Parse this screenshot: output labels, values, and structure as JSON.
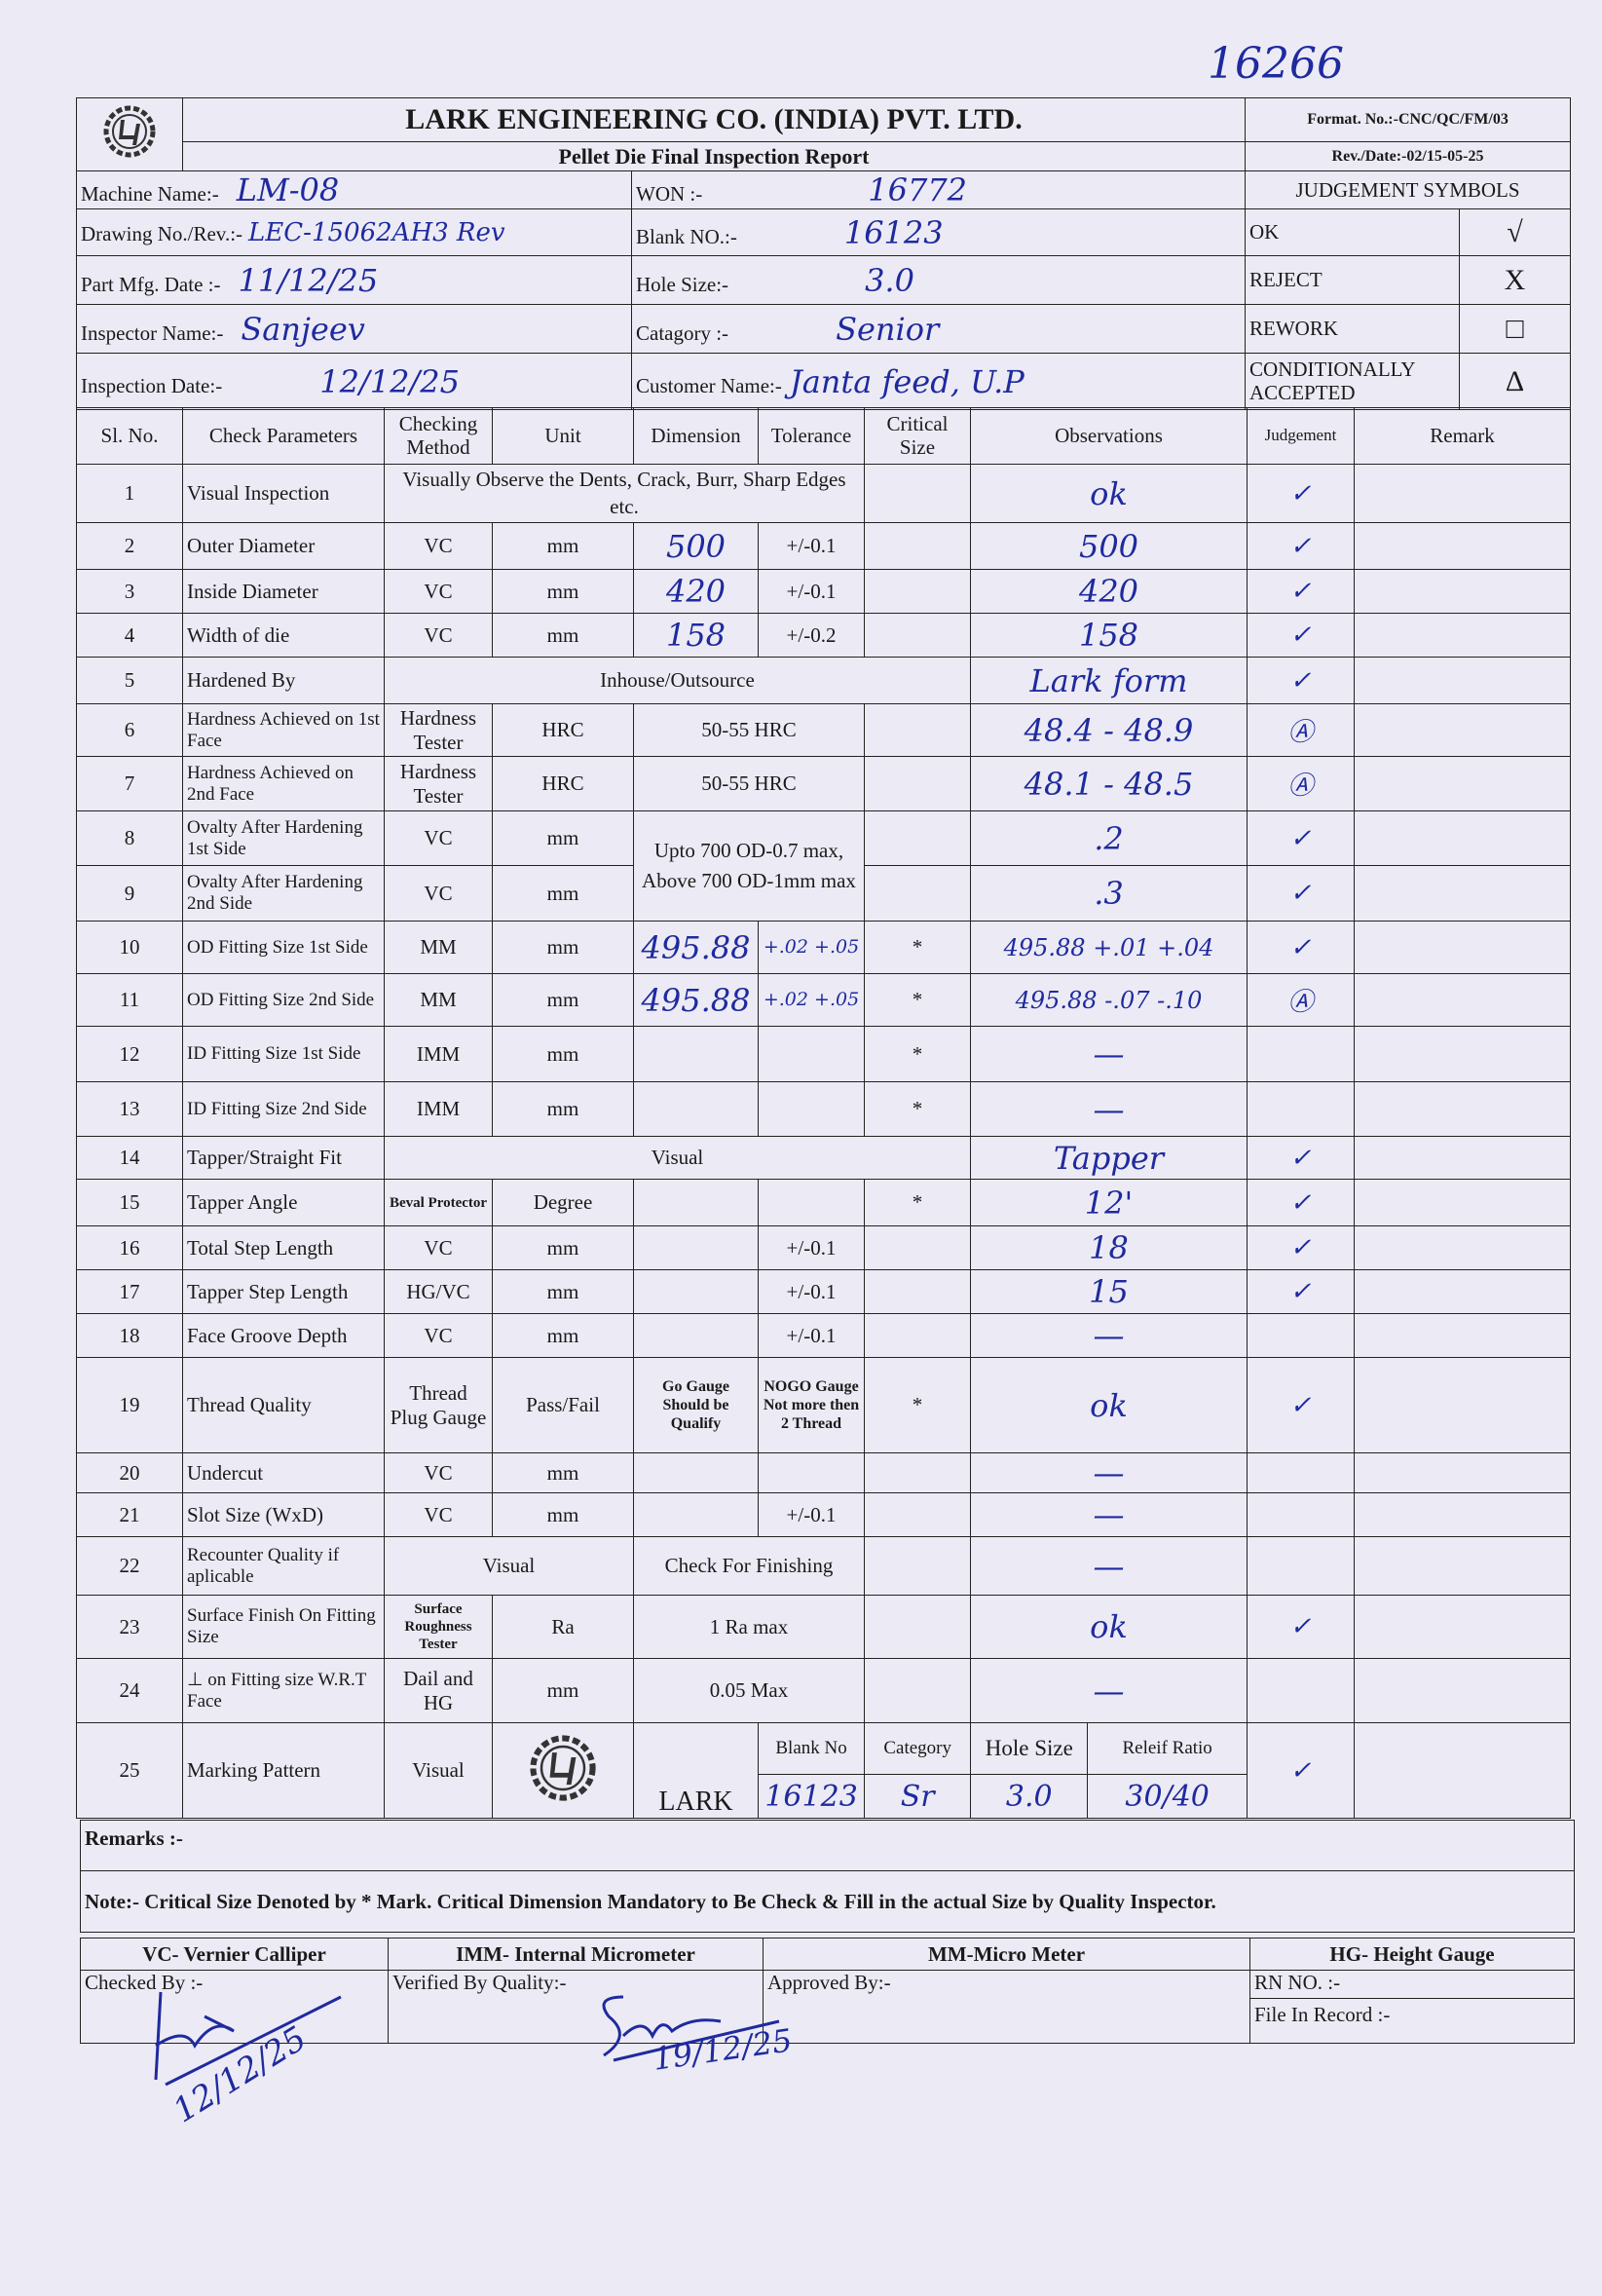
{
  "page_number_handwritten": "16266",
  "header": {
    "company": "LARK ENGINEERING CO. (INDIA) PVT. LTD.",
    "report_title": "Pellet Die Final Inspection Report",
    "format_no": "Format. No.:-CNC/QC/FM/03",
    "rev_date": "Rev./Date:-02/15-05-25",
    "logo_icon": "lark-gear-logo"
  },
  "info": {
    "machine_name": {
      "label": "Machine Name:-",
      "value": "LM-08"
    },
    "drawing_no": {
      "label": "Drawing No./Rev.:-",
      "value": "LEC-15062AH3 Rev"
    },
    "part_mfg_date": {
      "label": "Part Mfg. Date :-",
      "value": "11/12/25"
    },
    "inspector_name": {
      "label": "Inspector Name:-",
      "value": "Sanjeev"
    },
    "inspection_date": {
      "label": "Inspection Date:-",
      "value": "12/12/25"
    },
    "won": {
      "label": "WON :-",
      "value": "16772"
    },
    "blank_no": {
      "label": "Blank NO.:-",
      "value": "16123"
    },
    "hole_size": {
      "label": "Hole Size:-",
      "value": "3.0"
    },
    "category": {
      "label": "Catagory :-",
      "value": "Senior"
    },
    "customer_name": {
      "label": "Customer Name:-",
      "value": "Janta feed, U.P"
    }
  },
  "judgement_symbols": {
    "title": "JUDGEMENT SYMBOLS",
    "items": [
      {
        "label": "OK",
        "symbol": "√"
      },
      {
        "label": "REJECT",
        "symbol": "X"
      },
      {
        "label": "REWORK",
        "symbol": "□"
      },
      {
        "label": "CONDITIONALLY ACCEPTED",
        "symbol": "Δ"
      }
    ]
  },
  "columns": [
    "Sl. No.",
    "Check Parameters",
    "Checking Method",
    "Unit",
    "Dimension",
    "Tolerance",
    "Critical Size",
    "Observations",
    "Judgement",
    "Remark"
  ],
  "rows": [
    {
      "sl": "1",
      "parameter": "Visual Inspection",
      "method": "Visually Observe the Dents, Crack, Burr, Sharp Edges etc.",
      "observation": "ok",
      "judgement": "✓"
    },
    {
      "sl": "2",
      "parameter": "Outer Diameter",
      "method": "VC",
      "unit": "mm",
      "dimension": "500",
      "tolerance": "+/-0.1",
      "observation": "500",
      "judgement": "✓"
    },
    {
      "sl": "3",
      "parameter": "Inside Diameter",
      "method": "VC",
      "unit": "mm",
      "dimension": "420",
      "tolerance": "+/-0.1",
      "observation": "420",
      "judgement": "✓"
    },
    {
      "sl": "4",
      "parameter": "Width of die",
      "method": "VC",
      "unit": "mm",
      "dimension": "158",
      "tolerance": "+/-0.2",
      "observation": "158",
      "judgement": "✓"
    },
    {
      "sl": "5",
      "parameter": "Hardened By",
      "method": "Inhouse/Outsource",
      "observation": "Lark form",
      "judgement": "✓"
    },
    {
      "sl": "6",
      "parameter": "Hardness Achieved on 1st Face",
      "method": "Hardness Tester",
      "unit": "HRC",
      "dimension": "50-55 HRC",
      "observation": "48.4 - 48.9",
      "judgement": "Ⓐ"
    },
    {
      "sl": "7",
      "parameter": "Hardness Achieved on 2nd Face",
      "method": "Hardness Tester",
      "unit": "HRC",
      "dimension": "50-55 HRC",
      "observation": "48.1 - 48.5",
      "judgement": "Ⓐ"
    },
    {
      "sl": "8",
      "parameter": "Ovalty After Hardening 1st Side",
      "method": "VC",
      "unit": "mm",
      "dimension": "Upto 700 OD-0.7 max, Above 700 OD-1mm max",
      "observation": ".2",
      "judgement": "✓"
    },
    {
      "sl": "9",
      "parameter": "Ovalty After Hardening 2nd Side",
      "method": "VC",
      "unit": "mm",
      "observation": ".3",
      "judgement": "✓"
    },
    {
      "sl": "10",
      "parameter": "OD Fitting Size 1st Side",
      "method": "MM",
      "unit": "mm",
      "dimension": "495.88",
      "tolerance": "+.02 +.05",
      "critical": "*",
      "observation": "495.88 +.01 +.04",
      "judgement": "✓"
    },
    {
      "sl": "11",
      "parameter": "OD Fitting Size 2nd Side",
      "method": "MM",
      "unit": "mm",
      "dimension": "495.88",
      "tolerance": "+.02 +.05",
      "critical": "*",
      "observation": "495.88 -.07 -.10",
      "judgement": "Ⓐ"
    },
    {
      "sl": "12",
      "parameter": "ID Fitting Size 1st Side",
      "method": "IMM",
      "unit": "mm",
      "critical": "*",
      "observation": "—"
    },
    {
      "sl": "13",
      "parameter": "ID Fitting Size 2nd Side",
      "method": "IMM",
      "unit": "mm",
      "critical": "*",
      "observation": "—"
    },
    {
      "sl": "14",
      "parameter": "Tapper/Straight Fit",
      "method": "Visual",
      "observation": "Tapper",
      "judgement": "✓"
    },
    {
      "sl": "15",
      "parameter": "Tapper Angle",
      "method": "Beval Protector",
      "unit": "Degree",
      "critical": "*",
      "observation": "12'",
      "judgement": "✓"
    },
    {
      "sl": "16",
      "parameter": "Total Step Length",
      "method": "VC",
      "unit": "mm",
      "tolerance": "+/-0.1",
      "observation": "18",
      "judgement": "✓"
    },
    {
      "sl": "17",
      "parameter": "Tapper Step Length",
      "method": "HG/VC",
      "unit": "mm",
      "tolerance": "+/-0.1",
      "observation": "15",
      "judgement": "✓"
    },
    {
      "sl": "18",
      "parameter": "Face Groove Depth",
      "method": "VC",
      "unit": "mm",
      "tolerance": "+/-0.1",
      "observation": "—"
    },
    {
      "sl": "19",
      "parameter": "Thread Quality",
      "method": "Thread Plug Gauge",
      "unit": "Pass/Fail",
      "dimension": "Go Gauge Should be Qualify",
      "tolerance": "NOGO Gauge Not more then 2 Thread",
      "critical": "*",
      "observation": "ok",
      "judgement": "✓"
    },
    {
      "sl": "20",
      "parameter": "Undercut",
      "method": "VC",
      "unit": "mm",
      "observation": "—"
    },
    {
      "sl": "21",
      "parameter": "Slot Size (WxD)",
      "method": "VC",
      "unit": "mm",
      "tolerance": "+/-0.1",
      "observation": "—"
    },
    {
      "sl": "22",
      "parameter": "Recounter Quality if aplicable",
      "method": "Visual",
      "dimension": "Check For Finishing",
      "observation": "—"
    },
    {
      "sl": "23",
      "parameter": "Surface Finish On Fitting Size",
      "method": "Surface Roughness Tester",
      "unit": "Ra",
      "dimension": "1 Ra max",
      "observation": "ok",
      "judgement": "✓"
    },
    {
      "sl": "24",
      "parameter": "⊥ on Fitting size W.R.T Face",
      "method": "Dail and HG",
      "unit": "mm",
      "dimension": "0.05 Max",
      "observation": "—"
    },
    {
      "sl": "25",
      "parameter": "Marking Pattern",
      "method": "Visual",
      "dimension": "LARK",
      "judgement": "✓",
      "marking": {
        "headers": [
          "Blank No",
          "Category",
          "Hole Size",
          "Releif Ratio"
        ],
        "values": [
          "16123",
          "Sr",
          "3.0",
          "30/40"
        ]
      }
    }
  ],
  "remarks_label": "Remarks :-",
  "note": "Note:- Critical Size Denoted by * Mark. Critical Dimension Mandatory to Be Check & Fill in the actual Size by Quality Inspector.",
  "legend": [
    "VC- Vernier Calliper",
    "IMM- Internal Micrometer",
    "MM-Micro Meter",
    "HG- Height Gauge"
  ],
  "signoff": {
    "checked_by": "Checked By :-",
    "verified_by": "Verified By Quality:-",
    "approved_by": "Approved By:-",
    "rn_no": "RN NO. :-",
    "file_in_record": "File In Record :-",
    "checked_date": "12/12/25",
    "verified_date": "19/12/25"
  },
  "colors": {
    "ink": "#1f2a9e",
    "paper": "#ecebf5"
  }
}
